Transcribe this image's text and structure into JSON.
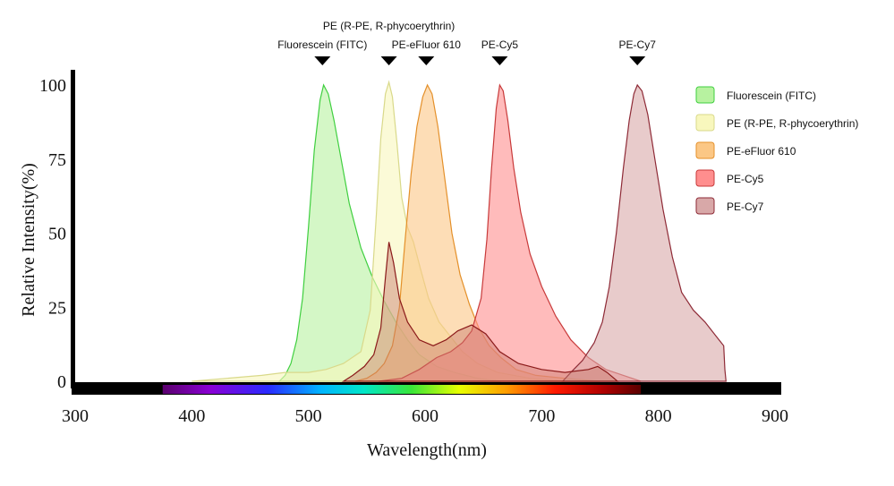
{
  "chart_data": {
    "type": "area",
    "xlabel": "Wavelength(nm)",
    "ylabel": "Relative Intensity(%)",
    "xlim": [
      300,
      900
    ],
    "ylim": [
      0,
      100
    ],
    "x_ticks": [
      "300",
      "400",
      "500",
      "600",
      "700",
      "800",
      "900"
    ],
    "y_ticks": [
      "0",
      "25",
      "50",
      "75",
      "100"
    ],
    "grid": false,
    "legend_position": "top-right",
    "spectrum_band": [
      375,
      785
    ],
    "series": [
      {
        "name": "Fluorescein (FITC)",
        "peak_label": "Fluorescein (FITC)",
        "peak_x": 512,
        "fill": "#b7f2a0",
        "stroke": "#3fcf3f",
        "points": [
          [
            475,
            0
          ],
          [
            480,
            2
          ],
          [
            485,
            6
          ],
          [
            490,
            14
          ],
          [
            495,
            28
          ],
          [
            500,
            52
          ],
          [
            505,
            78
          ],
          [
            510,
            95
          ],
          [
            513,
            100
          ],
          [
            517,
            97
          ],
          [
            522,
            88
          ],
          [
            528,
            75
          ],
          [
            535,
            60
          ],
          [
            545,
            45
          ],
          [
            555,
            35
          ],
          [
            565,
            27
          ],
          [
            575,
            20
          ],
          [
            585,
            14
          ],
          [
            595,
            9
          ],
          [
            610,
            5
          ],
          [
            625,
            3
          ],
          [
            645,
            1
          ],
          [
            665,
            0
          ]
        ]
      },
      {
        "name": "PE (R-PE, R-phycoerythrin)",
        "peak_label": "PE (R-PE, R-phycoerythrin)",
        "peak_x": 569,
        "fill": "#f8f7bd",
        "stroke": "#d9d98a",
        "points": [
          [
            400,
            0
          ],
          [
            430,
            1
          ],
          [
            460,
            2
          ],
          [
            480,
            3
          ],
          [
            500,
            3
          ],
          [
            515,
            4
          ],
          [
            530,
            6
          ],
          [
            545,
            10
          ],
          [
            553,
            24
          ],
          [
            558,
            55
          ],
          [
            562,
            82
          ],
          [
            566,
            97
          ],
          [
            569,
            101
          ],
          [
            572,
            96
          ],
          [
            576,
            80
          ],
          [
            580,
            62
          ],
          [
            585,
            52
          ],
          [
            590,
            47
          ],
          [
            596,
            38
          ],
          [
            603,
            28
          ],
          [
            612,
            20
          ],
          [
            622,
            15
          ],
          [
            632,
            10
          ],
          [
            645,
            6
          ],
          [
            662,
            3
          ],
          [
            690,
            1
          ],
          [
            720,
            0
          ]
        ]
      },
      {
        "name": "PE-eFluor 610",
        "peak_label": "PE-eFluor 610",
        "peak_x": 601,
        "fill": "#fbc785",
        "stroke": "#e4902a",
        "points": [
          [
            540,
            0
          ],
          [
            550,
            1
          ],
          [
            558,
            3
          ],
          [
            565,
            6
          ],
          [
            572,
            12
          ],
          [
            578,
            25
          ],
          [
            583,
            48
          ],
          [
            588,
            70
          ],
          [
            593,
            86
          ],
          [
            598,
            96
          ],
          [
            602,
            100
          ],
          [
            606,
            97
          ],
          [
            611,
            86
          ],
          [
            617,
            68
          ],
          [
            623,
            50
          ],
          [
            630,
            36
          ],
          [
            638,
            26
          ],
          [
            646,
            18
          ],
          [
            655,
            12
          ],
          [
            665,
            8
          ],
          [
            678,
            4
          ],
          [
            695,
            2
          ],
          [
            720,
            1
          ],
          [
            750,
            0
          ]
        ]
      },
      {
        "name": "PE-Cy5",
        "peak_label": "PE-Cy5",
        "peak_x": 664,
        "fill": "#ff8e8e",
        "stroke": "#c83a3a",
        "points": [
          [
            560,
            0
          ],
          [
            580,
            1
          ],
          [
            595,
            4
          ],
          [
            610,
            8
          ],
          [
            622,
            10
          ],
          [
            632,
            13
          ],
          [
            640,
            17
          ],
          [
            648,
            28
          ],
          [
            653,
            48
          ],
          [
            657,
            72
          ],
          [
            661,
            92
          ],
          [
            664,
            100
          ],
          [
            667,
            98
          ],
          [
            671,
            88
          ],
          [
            676,
            72
          ],
          [
            682,
            57
          ],
          [
            690,
            43
          ],
          [
            700,
            32
          ],
          [
            712,
            22
          ],
          [
            725,
            14
          ],
          [
            740,
            8
          ],
          [
            755,
            4
          ],
          [
            770,
            2
          ],
          [
            785,
            0
          ]
        ]
      },
      {
        "name": "PE-Cy7",
        "peak_label": "PE-Cy7",
        "peak_x": 782,
        "fill": "#d8a8a8",
        "stroke": "#8e2a36",
        "points": [
          [
            718,
            0
          ],
          [
            725,
            3
          ],
          [
            735,
            7
          ],
          [
            745,
            13
          ],
          [
            752,
            20
          ],
          [
            758,
            32
          ],
          [
            764,
            50
          ],
          [
            770,
            72
          ],
          [
            775,
            88
          ],
          [
            779,
            97
          ],
          [
            782,
            100
          ],
          [
            786,
            98
          ],
          [
            791,
            90
          ],
          [
            797,
            75
          ],
          [
            804,
            58
          ],
          [
            812,
            42
          ],
          [
            820,
            30
          ],
          [
            830,
            24
          ],
          [
            840,
            20
          ],
          [
            850,
            15
          ],
          [
            856,
            12
          ],
          [
            857,
            4
          ],
          [
            858,
            0
          ]
        ]
      }
    ],
    "extra_curve": {
      "stroke": "#8b1a1a",
      "fill": "#c77a6c",
      "points": [
        [
          530,
          0
        ],
        [
          538,
          2
        ],
        [
          548,
          5
        ],
        [
          556,
          9
        ],
        [
          562,
          18
        ],
        [
          566,
          35
        ],
        [
          569,
          47
        ],
        [
          573,
          40
        ],
        [
          578,
          28
        ],
        [
          585,
          20
        ],
        [
          595,
          14
        ],
        [
          607,
          12
        ],
        [
          618,
          14
        ],
        [
          628,
          17
        ],
        [
          640,
          19
        ],
        [
          652,
          16
        ],
        [
          664,
          10
        ],
        [
          680,
          6
        ],
        [
          700,
          4
        ],
        [
          720,
          3
        ],
        [
          740,
          4
        ],
        [
          748,
          5
        ],
        [
          756,
          3
        ],
        [
          765,
          0
        ]
      ]
    }
  }
}
